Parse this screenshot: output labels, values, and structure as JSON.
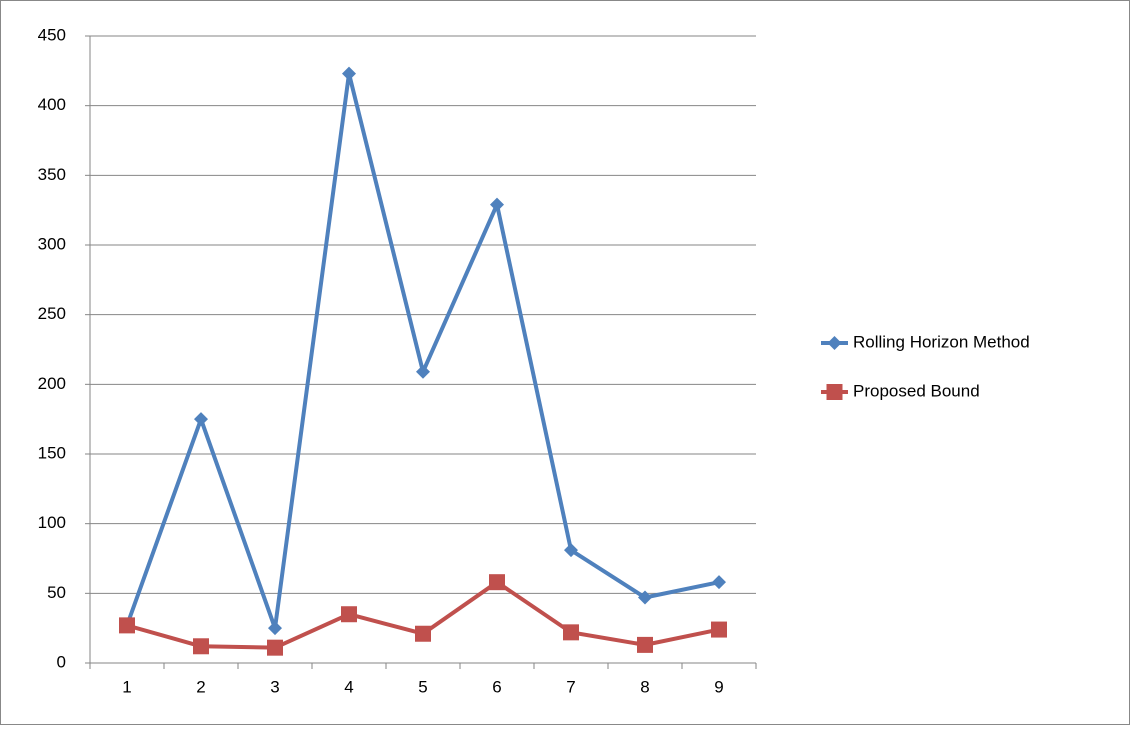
{
  "chart_data": {
    "type": "line",
    "categories": [
      "1",
      "2",
      "3",
      "4",
      "5",
      "6",
      "7",
      "8",
      "9"
    ],
    "series": [
      {
        "name": "Rolling Horizon Method",
        "color": "#4f81bd",
        "marker": "diamond",
        "values": [
          27,
          175,
          25,
          423,
          209,
          329,
          81,
          47,
          58
        ]
      },
      {
        "name": "Proposed Bound",
        "color": "#c0504d",
        "marker": "square",
        "values": [
          27,
          12,
          11,
          35,
          21,
          58,
          22,
          13,
          24
        ]
      }
    ],
    "ylim": [
      0,
      450
    ],
    "yticks": [
      0,
      50,
      100,
      150,
      200,
      250,
      300,
      350,
      400,
      450
    ],
    "grid": true,
    "legend": "right"
  }
}
